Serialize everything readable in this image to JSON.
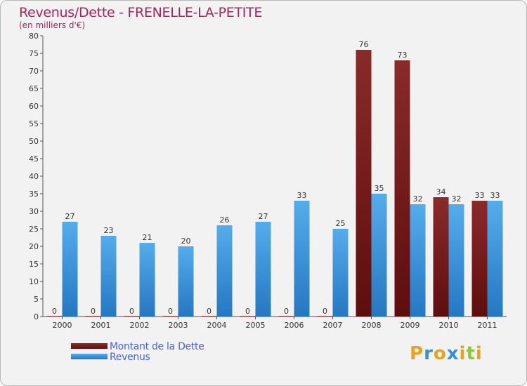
{
  "title": "Revenus/Dette - FRENELLE-LA-PETITE",
  "subtitle": "(en milliers d'€)",
  "logo": {
    "text": "Proxiti",
    "letters": [
      "P",
      "r",
      "o",
      "x",
      "i",
      "t",
      "i"
    ],
    "colors": [
      "#e8a31c",
      "#3a8fd6",
      "#e8a31c",
      "#3a8fd6",
      "#e8a31c",
      "#8cc63f",
      "#e8a31c"
    ]
  },
  "chart_data": {
    "type": "bar",
    "title": "Revenus/Dette - FRENELLE-LA-PETITE",
    "subtitle": "(en milliers d'€)",
    "categories": [
      "2000",
      "2001",
      "2002",
      "2003",
      "2004",
      "2005",
      "2006",
      "2007",
      "2008",
      "2009",
      "2010",
      "2011"
    ],
    "series": [
      {
        "name": "Montant de la Dette",
        "color": "#7a1c1c",
        "values": [
          0,
          0,
          0,
          0,
          0,
          0,
          0,
          0,
          76,
          73,
          34,
          33
        ]
      },
      {
        "name": "Revenus",
        "color": "#3a9be2",
        "values": [
          27,
          23,
          21,
          20,
          26,
          27,
          33,
          25,
          35,
          32,
          32,
          33
        ]
      }
    ],
    "ylim": [
      0,
      80
    ],
    "yticks": [
      0,
      5,
      10,
      15,
      20,
      25,
      30,
      35,
      40,
      45,
      50,
      55,
      60,
      65,
      70,
      75,
      80
    ],
    "grid": false,
    "legend": "bottom-left"
  }
}
